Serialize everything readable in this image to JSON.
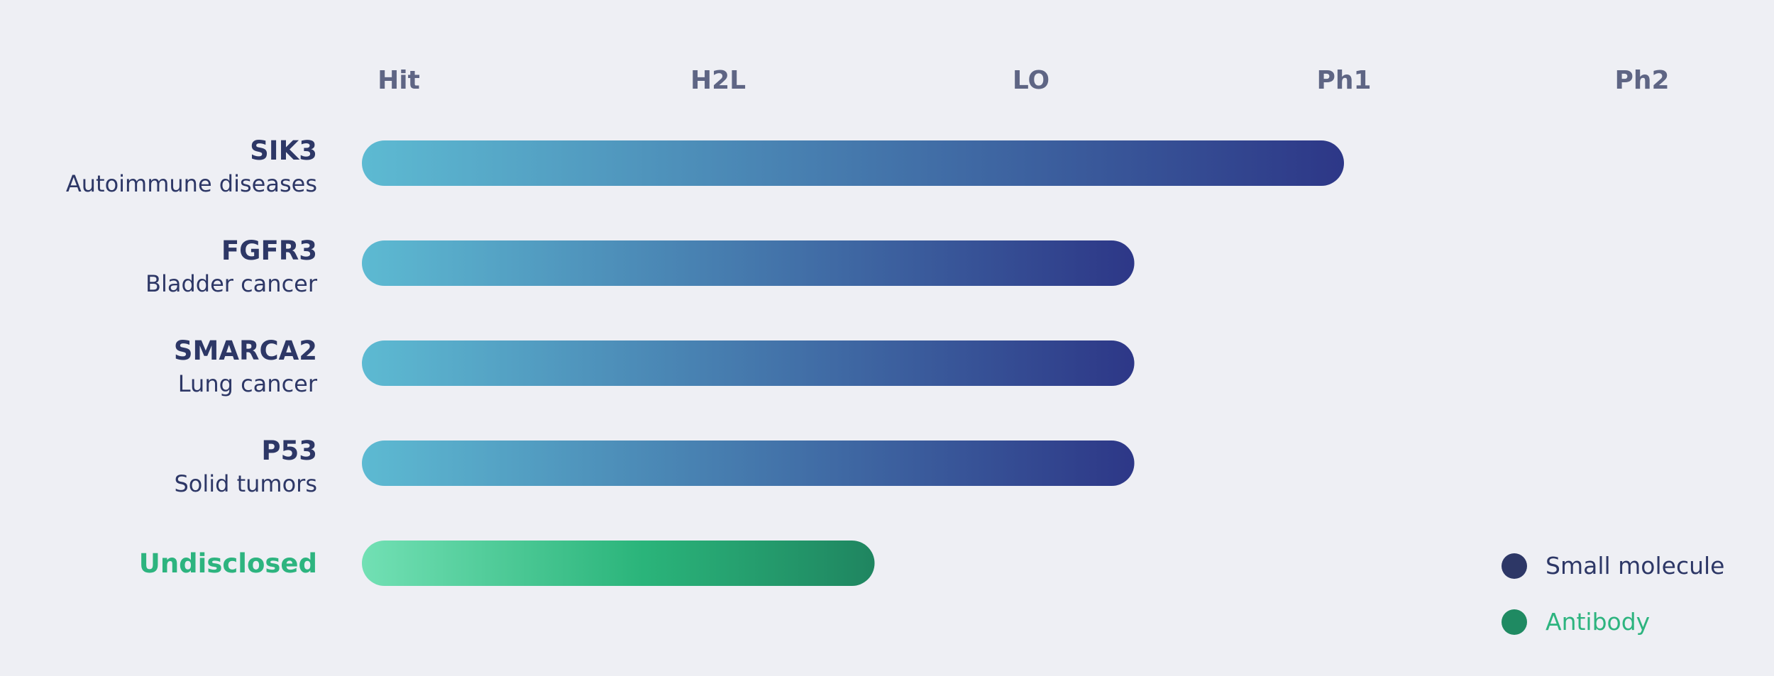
{
  "chart_data": {
    "type": "bar",
    "orientation": "horizontal",
    "stages": [
      "Hit",
      "H2L",
      "LO",
      "Ph1",
      "Ph2"
    ],
    "programs": [
      {
        "target": "SIK3",
        "indication": "Autoimmune diseases",
        "modality": "Small molecule",
        "progress": 3.0
      },
      {
        "target": "FGFR3",
        "indication": "Bladder cancer",
        "modality": "Small molecule",
        "progress": 2.33
      },
      {
        "target": "SMARCA2",
        "indication": "Lung cancer",
        "modality": "Small molecule",
        "progress": 2.33
      },
      {
        "target": "P53",
        "indication": "Solid tumors",
        "modality": "Small molecule",
        "progress": 2.33
      },
      {
        "target": "Undisclosed",
        "indication": "",
        "modality": "Antibody",
        "progress": 1.5
      }
    ],
    "legend": [
      {
        "label": "Small molecule",
        "color": "#2D3766",
        "label_color": "#2D3766"
      },
      {
        "label": "Antibody",
        "color": "#1F8A62",
        "label_color": "#2DB47F"
      }
    ],
    "legend_position": "bottom-right",
    "grid": false
  },
  "colors": {
    "background": "#EEEFF4",
    "stage_text": "#5E6584",
    "small_molecule_start": "#5DBAD2",
    "small_molecule_end": "#2D3787",
    "antibody_start": "#72E0B4",
    "antibody_mid": "#2AB47A",
    "antibody_end": "#1F8560",
    "target_text": "#2D3766",
    "antibody_text": "#2DB47F"
  }
}
